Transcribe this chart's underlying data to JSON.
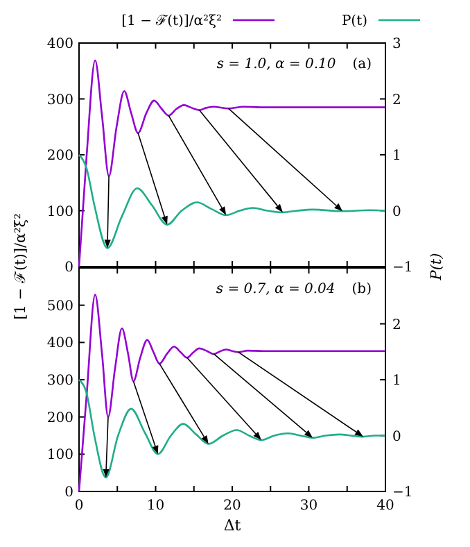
{
  "chart_data": [
    {
      "type": "line",
      "legend": "top",
      "tick_labels": "y",
      "xlim": [
        0,
        40
      ],
      "xticks": [
        0,
        {
          "value": 5,
          "label": null
        },
        {
          "value": 10,
          "label": null
        },
        {
          "value": 15,
          "label": null
        },
        {
          "value": 20,
          "label": null
        },
        {
          "value": 25,
          "label": null
        },
        {
          "value": 30,
          "label": null
        },
        {
          "value": 35,
          "label": null
        },
        {
          "value": 40,
          "label": null
        }
      ],
      "ylim": [
        0,
        400
      ],
      "yticks": [
        0,
        100,
        200,
        300,
        400
      ],
      "y2lim": [
        -1,
        3
      ],
      "y2ticks": [
        {
          "value": -1,
          "label": "−1"
        },
        0,
        1,
        2,
        3
      ],
      "ylabel": "[1 − ℱ(t)]/α²ξ²",
      "y2label": "P(t)",
      "annotations": [
        "s = 1.0, α = 0.10",
        "(a)"
      ],
      "series": [
        {
          "name": "[1 − ℱ(t)]/α²ξ²",
          "color": "#9400d3",
          "x": [
            0,
            1,
            2.1,
            3,
            3.9,
            4.9,
            5.9,
            6.8,
            7.7,
            8.8,
            9.8,
            10.8,
            11.7,
            12.7,
            13.7,
            14.7,
            15.7,
            16.6,
            17.5,
            19.5,
            21.5,
            24,
            40
          ],
          "values": [
            0,
            200,
            369,
            270,
            162,
            250,
            314,
            275,
            239,
            275,
            297,
            282,
            270,
            282,
            289,
            284,
            280,
            284,
            286,
            283,
            286,
            285,
            285
          ]
        },
        {
          "name": "P(t)",
          "color": "#1fae89",
          "axis": "y2",
          "x": [
            0,
            1,
            2,
            3.7,
            5.6,
            7.6,
            9.5,
            11.5,
            13.4,
            15.4,
            17.3,
            19.2,
            21,
            22.7,
            24.6,
            26.6,
            28.5,
            30.5,
            34.4,
            38,
            40
          ],
          "values": [
            1,
            0.75,
            0.1,
            -0.67,
            -0.1,
            0.4,
            0.1,
            -0.25,
            0,
            0.15,
            0.03,
            -0.08,
            0,
            0.05,
            0,
            -0.03,
            0,
            0.02,
            -0.01,
            0.01,
            0
          ]
        }
      ]
    },
    {
      "type": "line",
      "xlabel": "Δt",
      "xlim": [
        0,
        40
      ],
      "xticks": [
        0,
        {
          "value": 5,
          "label": null
        },
        10,
        {
          "value": 15,
          "label": null
        },
        20,
        {
          "value": 25,
          "label": null
        },
        30,
        {
          "value": 35,
          "label": null
        },
        40
      ],
      "ylim": [
        0,
        600
      ],
      "yticks": [
        0,
        100,
        200,
        300,
        400,
        500
      ],
      "y2lim": [
        -1,
        3
      ],
      "y2ticks": [
        {
          "value": -1,
          "label": "−1"
        },
        0,
        1,
        2
      ],
      "annotations": [
        "s = 0.7, α = 0.04",
        "(b)"
      ],
      "series": [
        {
          "color": "#9400d3",
          "x": [
            0,
            1,
            2.1,
            3,
            3.8,
            4.7,
            5.6,
            6.4,
            7.1,
            8,
            8.9,
            9.7,
            10.5,
            11.5,
            12.4,
            13.3,
            14.1,
            14.9,
            15.7,
            16.7,
            17.6,
            18.4,
            19.2,
            20,
            20.8,
            22,
            24,
            40
          ],
          "values": [
            0,
            260,
            528,
            370,
            200,
            330,
            438,
            370,
            296,
            360,
            407,
            375,
            343,
            370,
            389,
            373,
            359,
            373,
            384,
            377,
            369,
            376,
            381,
            377,
            374,
            378,
            377,
            377
          ]
        },
        {
          "color": "#1fae89",
          "axis": "y2",
          "x": [
            0,
            1,
            2,
            3.5,
            5.1,
            6.8,
            8.6,
            10.3,
            12,
            13.6,
            15.3,
            16.9,
            18.8,
            20.6,
            22.2,
            23.8,
            25.5,
            27.3,
            28.9,
            30.5,
            32.2,
            34,
            35.5,
            37.1,
            38.6,
            40
          ],
          "values": [
            1,
            0.75,
            0,
            -0.75,
            0,
            0.48,
            0.05,
            -0.33,
            0,
            0.21,
            0.02,
            -0.15,
            0,
            0.1,
            0,
            -0.08,
            0,
            0.04,
            0,
            -0.04,
            0,
            0.02,
            0,
            -0.02,
            0,
            0
          ]
        }
      ]
    }
  ]
}
